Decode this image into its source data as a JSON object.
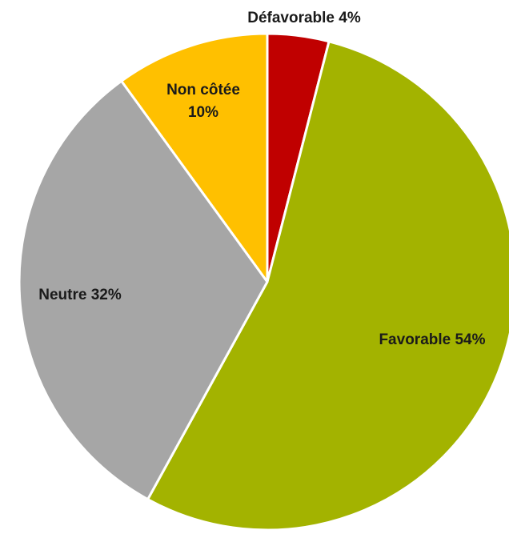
{
  "chart_data": {
    "type": "pie",
    "title": "",
    "start_angle_deg": 0,
    "direction": "clockwise",
    "legend": "none",
    "slices": [
      {
        "label": "Défavorable",
        "value": 4,
        "display": "Défavorable 4%",
        "color": "#C00000"
      },
      {
        "label": "Favorable",
        "value": 54,
        "display": "Favorable 54%",
        "color": "#A3B300"
      },
      {
        "label": "Neutre",
        "value": 32,
        "display": "Neutre 32%",
        "color": "#A6A6A6"
      },
      {
        "label": "Non côtée",
        "value": 10,
        "display_lines": [
          "Non côtée",
          "10%"
        ],
        "color": "#FFC000"
      }
    ]
  }
}
